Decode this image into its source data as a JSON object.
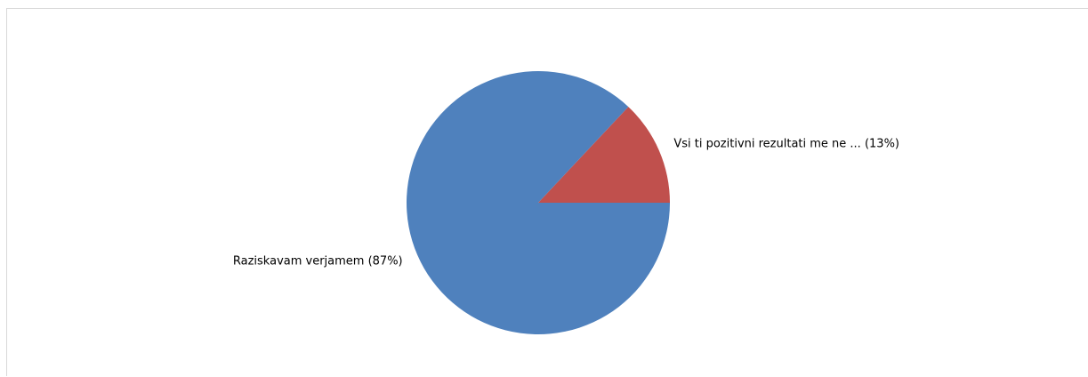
{
  "chart_data": {
    "type": "pie",
    "slices": [
      {
        "label": "Vsi ti pozitivni rezultati me ne ... (13%)",
        "value": 13,
        "color": "#c0504d"
      },
      {
        "label": "Raziskavam verjamem (87%)",
        "value": 87,
        "color": "#4f81bd"
      }
    ],
    "start": "3 o'clock",
    "direction": "counter-clockwise",
    "legend": "none"
  }
}
